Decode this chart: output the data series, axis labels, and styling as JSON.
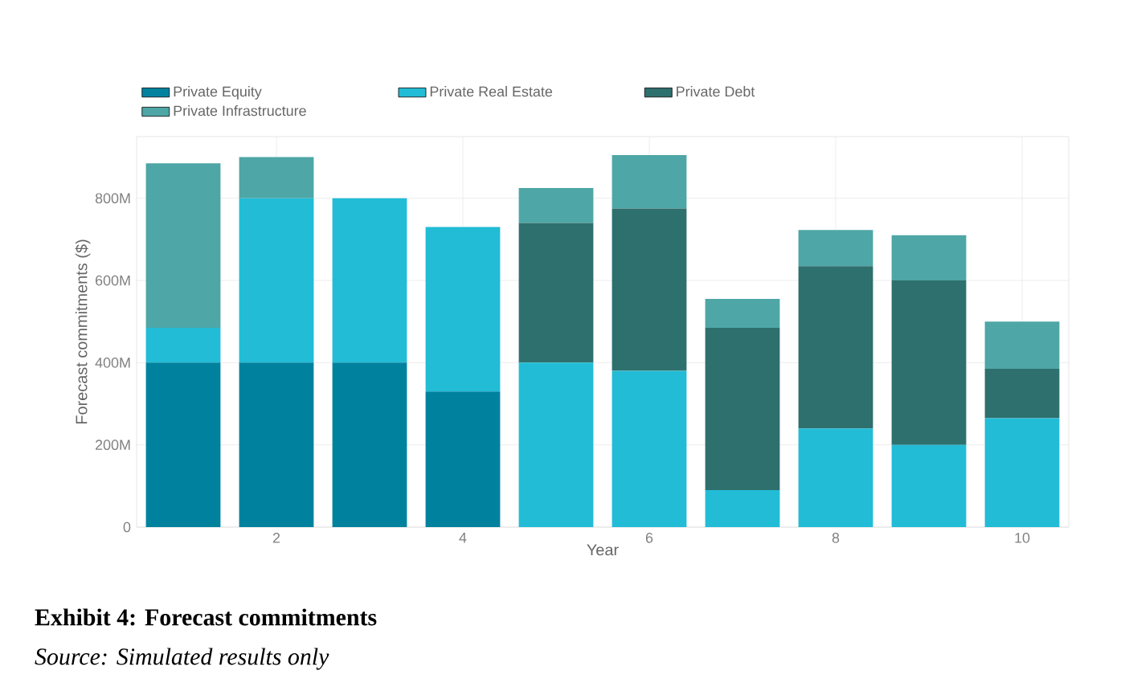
{
  "chart_data": {
    "type": "bar",
    "stacked": true,
    "title": "Exhibit 4: Forecast commitments",
    "annotations": [
      "Source: Simulated results only"
    ],
    "xlabel": "Year",
    "ylabel": "Forecast commitments ($)",
    "x": [
      1,
      2,
      3,
      4,
      5,
      6,
      7,
      8,
      9,
      10
    ],
    "xlim": [
      0.5,
      10.5
    ],
    "xticks": [
      2,
      4,
      6,
      8,
      10
    ],
    "ylim": [
      0,
      950
    ],
    "yticks": [
      0,
      {
        "value": 200,
        "label": "200M"
      },
      {
        "value": 400,
        "label": "400M"
      },
      {
        "value": 600,
        "label": "600M"
      },
      {
        "value": 800,
        "label": "800M"
      }
    ],
    "series": [
      {
        "name": "Private Equity",
        "color": "#00829f",
        "values": [
          400,
          400,
          400,
          330,
          null,
          null,
          null,
          null,
          null,
          null
        ]
      },
      {
        "name": "Private Real Estate",
        "color": "#22bcd6",
        "values": [
          85,
          400,
          400,
          400,
          400,
          380,
          90,
          240,
          200,
          265
        ]
      },
      {
        "name": "Private Debt",
        "color": "#2e706e",
        "values": [
          null,
          null,
          null,
          null,
          340,
          395,
          395,
          395,
          400,
          120
        ]
      },
      {
        "name": "Private Infrastructure",
        "color": "#4ea6a6",
        "values": [
          400,
          100,
          null,
          null,
          85,
          130,
          70,
          88,
          110,
          115
        ]
      }
    ],
    "grid": true,
    "legend": "top left"
  }
}
